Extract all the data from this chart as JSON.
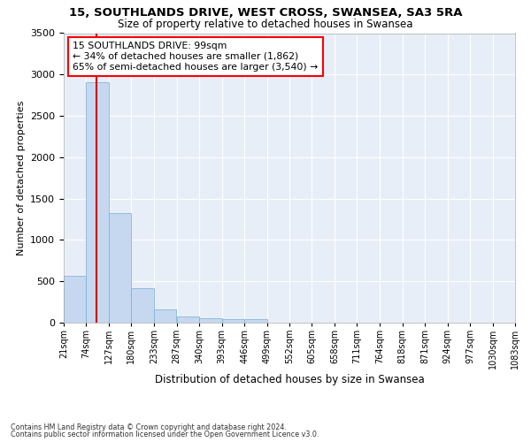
{
  "title1": "15, SOUTHLANDS DRIVE, WEST CROSS, SWANSEA, SA3 5RA",
  "title2": "Size of property relative to detached houses in Swansea",
  "xlabel": "Distribution of detached houses by size in Swansea",
  "ylabel": "Number of detached properties",
  "footer1": "Contains HM Land Registry data © Crown copyright and database right 2024.",
  "footer2": "Contains public sector information licensed under the Open Government Licence v3.0.",
  "annotation_line1": "15 SOUTHLANDS DRIVE: 99sqm",
  "annotation_line2": "← 34% of detached houses are smaller (1,862)",
  "annotation_line3": "65% of semi-detached houses are larger (3,540) →",
  "property_size": 99,
  "bin_edges": [
    21,
    74,
    127,
    180,
    233,
    287,
    340,
    393,
    446,
    499,
    552,
    605,
    658,
    711,
    764,
    818,
    871,
    924,
    977,
    1030,
    1083
  ],
  "bar_heights": [
    570,
    2910,
    1330,
    420,
    165,
    75,
    50,
    40,
    40,
    0,
    0,
    0,
    0,
    0,
    0,
    0,
    0,
    0,
    0,
    0
  ],
  "bar_color": "#c5d8f0",
  "bar_edge_color": "#7aadd4",
  "red_line_color": "#cc0000",
  "background_color": "#e8eef8",
  "grid_color": "#ffffff",
  "ylim": [
    0,
    3500
  ],
  "yticks": [
    0,
    500,
    1000,
    1500,
    2000,
    2500,
    3000,
    3500
  ]
}
